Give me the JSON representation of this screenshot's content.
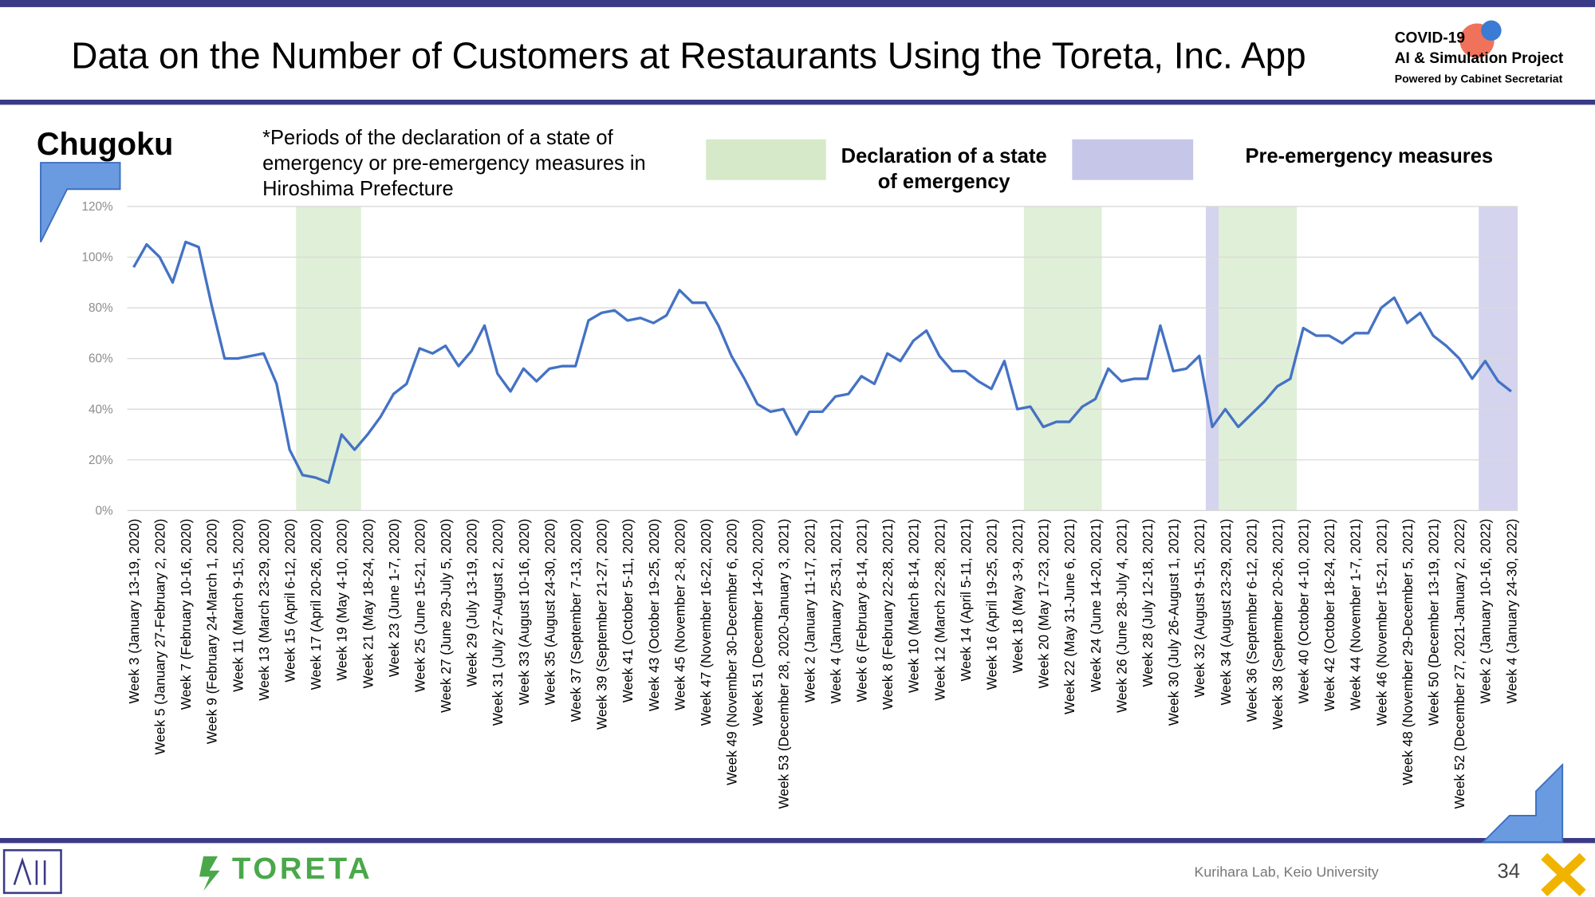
{
  "header": {
    "title": "Data on the Number of Customers at Restaurants Using the Toreta, Inc. App",
    "logo_lines": [
      "COVID-19",
      "AI & Simulation Project",
      "Powered by Cabinet Secretariat"
    ]
  },
  "footer": {
    "brand": "TORETA",
    "credit": "Kurihara Lab, Keio University",
    "page": "34"
  },
  "chart_data": {
    "type": "line",
    "region": "Chugoku",
    "note": "*Periods of the declaration of a state of emergency or pre-emergency measures in Hiroshima Prefecture",
    "legend_items": [
      {
        "label": "Declaration of a state of emergency",
        "color": "#d6e9c9"
      },
      {
        "label": "Pre-emergency measures",
        "color": "#c6c6e8"
      }
    ],
    "shaded_periods": [
      {
        "color": "#d6e9c9",
        "from": 12.5,
        "to": 17.5
      },
      {
        "color": "#d6e9c9",
        "from": 68.5,
        "to": 74.5
      },
      {
        "color": "#c6c6e8",
        "from": 82.5,
        "to": 83.5
      },
      {
        "color": "#d6e9c9",
        "from": 83.5,
        "to": 89.5
      },
      {
        "color": "#c6c6e8",
        "from": 103.5,
        "to": 106.5
      }
    ],
    "categories": [
      "Week 3 (January 13-19, 2020)",
      null,
      "Week 5 (January 27-February 2, 2020)",
      null,
      "Week 7 (February 10-16, 2020)",
      null,
      "Week 9 (February 24-March 1, 2020)",
      null,
      "Week 11 (March 9-15, 2020)",
      null,
      "Week 13 (March 23-29, 2020)",
      null,
      "Week 15 (April 6-12, 2020)",
      null,
      "Week 17 (April 20-26, 2020)",
      null,
      "Week 19 (May 4-10, 2020)",
      null,
      "Week 21 (May 18-24, 2020)",
      null,
      "Week 23 (June 1-7, 2020)",
      null,
      "Week 25 (June 15-21, 2020)",
      null,
      "Week 27 (June 29-July 5, 2020)",
      null,
      "Week 29 (July 13-19, 2020)",
      null,
      "Week 31 (July 27-August 2, 2020)",
      null,
      "Week 33 (August 10-16, 2020)",
      null,
      "Week 35 (August 24-30, 2020)",
      null,
      "Week 37 (September 7-13, 2020)",
      null,
      "Week 39 (September 21-27, 2020)",
      null,
      "Week 41 (October 5-11, 2020)",
      null,
      "Week 43 (October 19-25, 2020)",
      null,
      "Week 45 (November 2-8, 2020)",
      null,
      "Week 47 (November 16-22, 2020)",
      null,
      "Week 49 (November 30-December 6, 2020)",
      null,
      "Week 51 (December 14-20, 2020)",
      null,
      "Week 53 (December 28, 2020-January 3, 2021)",
      null,
      "Week 2 (January 11-17, 2021)",
      null,
      "Week 4 (January 25-31, 2021)",
      null,
      "Week 6 (February 8-14, 2021)",
      null,
      "Week 8 (February 22-28, 2021)",
      null,
      "Week 10 (March 8-14, 2021)",
      null,
      "Week 12 (March 22-28, 2021)",
      null,
      "Week 14 (April 5-11, 2021)",
      null,
      "Week 16 (April 19-25, 2021)",
      null,
      "Week 18 (May 3-9, 2021)",
      null,
      "Week 20 (May 17-23, 2021)",
      null,
      "Week 22 (May 31-June 6, 2021)",
      null,
      "Week 24 (June 14-20, 2021)",
      null,
      "Week 26 (June 28-July 4, 2021)",
      null,
      "Week 28 (July 12-18, 2021)",
      null,
      "Week 30 (July 26-August 1, 2021)",
      null,
      "Week 32 (August 9-15, 2021)",
      null,
      "Week 34 (August 23-29, 2021)",
      null,
      "Week 36 (September 6-12, 2021)",
      null,
      "Week 38 (September 20-26, 2021)",
      null,
      "Week 40 (October 4-10, 2021)",
      null,
      "Week 42 (October 18-24, 2021)",
      null,
      "Week 44 (November 1-7, 2021)",
      null,
      "Week 46 (November 15-21, 2021)",
      null,
      "Week 48 (November 29-December 5, 2021)",
      null,
      "Week 50 (December 13-19, 2021)",
      null,
      "Week 52 (December 27, 2021-January 2, 2022)",
      null,
      "Week 2 (January 10-16, 2022)",
      null,
      "Week 4 (January 24-30, 2022)"
    ],
    "series": [
      {
        "color": "#4472c4",
        "values": [
          96,
          105,
          100,
          90,
          106,
          104,
          81,
          60,
          60,
          61,
          62,
          50,
          24,
          14,
          13,
          11,
          30,
          24,
          30,
          37,
          46,
          50,
          64,
          62,
          65,
          57,
          63,
          73,
          54,
          47,
          56,
          51,
          56,
          57,
          57,
          75,
          78,
          79,
          75,
          76,
          74,
          77,
          87,
          82,
          82,
          73,
          61,
          52,
          42,
          39,
          40,
          30,
          39,
          39,
          45,
          46,
          53,
          50,
          62,
          59,
          67,
          71,
          61,
          55,
          55,
          51,
          48,
          59,
          40,
          41,
          33,
          35,
          35,
          41,
          44,
          56,
          51,
          52,
          52,
          73,
          55,
          56,
          61,
          33,
          40,
          33,
          38,
          43,
          49,
          52,
          72,
          69,
          69,
          66,
          70,
          70,
          80,
          84,
          74,
          78,
          69,
          65,
          60,
          52,
          59,
          51,
          47
        ]
      }
    ],
    "ylim": [
      0,
      120
    ],
    "yticks": [
      {
        "value": 0,
        "label": "0%"
      },
      {
        "value": 20,
        "label": "20%"
      },
      {
        "value": 40,
        "label": "40%"
      },
      {
        "value": 60,
        "label": "60%"
      },
      {
        "value": 80,
        "label": "80%"
      },
      {
        "value": 100,
        "label": "100%"
      },
      {
        "value": 120,
        "label": "120%"
      }
    ],
    "grid": true
  }
}
